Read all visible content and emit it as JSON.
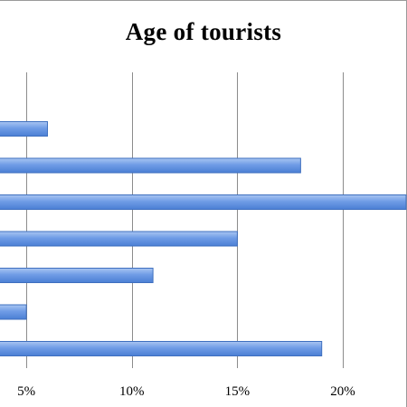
{
  "chart_data": {
    "type": "bar",
    "orientation": "horizontal",
    "title": "Age of tourists",
    "xlabel": "",
    "ylabel": "",
    "categories": [
      "",
      "",
      "",
      "",
      "",
      "",
      ""
    ],
    "values": [
      6,
      18,
      23,
      15,
      11,
      5,
      19
    ],
    "xlim": [
      3.75,
      23
    ],
    "x_ticks": [
      5,
      10,
      15,
      20
    ],
    "x_tick_labels": [
      "5%",
      "10%",
      "15%",
      "20%"
    ],
    "grid": "vertical",
    "legend": "none",
    "bar_color": "#6f9ce6",
    "bar_edge_color": "#3e6fbf",
    "grid_color": "#8c8c8c"
  }
}
